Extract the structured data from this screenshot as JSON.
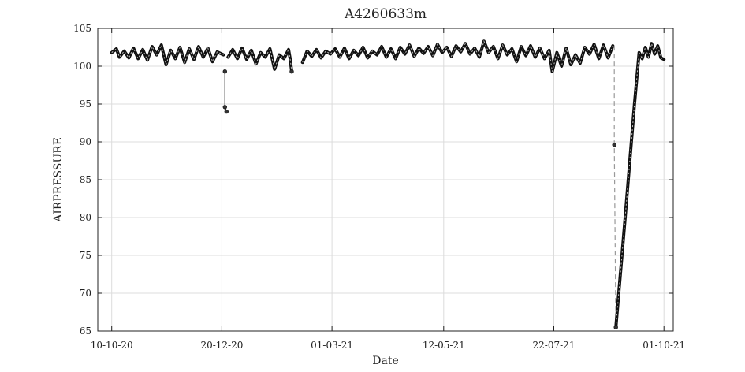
{
  "chart_data": {
    "type": "line",
    "title": "A4260633m",
    "xlabel": "Date",
    "ylabel": "AIRPRESSURE",
    "xlim": [
      "2020-10-01",
      "2021-10-07"
    ],
    "ylim": [
      65,
      105
    ],
    "grid": true,
    "x_ticks": [
      {
        "date": "2020-10-10",
        "label": "10-10-20"
      },
      {
        "date": "2020-12-20",
        "label": "20-12-20"
      },
      {
        "date": "2021-03-01",
        "label": "01-03-21"
      },
      {
        "date": "2021-05-12",
        "label": "12-05-21"
      },
      {
        "date": "2021-07-22",
        "label": "22-07-21"
      },
      {
        "date": "2021-10-01",
        "label": "01-10-21"
      }
    ],
    "y_ticks": [
      65,
      70,
      75,
      80,
      85,
      90,
      95,
      100,
      105
    ],
    "line_color": "#111111",
    "segments": [
      {
        "points": [
          [
            "2020-10-10",
            101.8
          ],
          [
            "2020-10-13",
            102.3
          ],
          [
            "2020-10-15",
            101.2
          ],
          [
            "2020-10-18",
            102.0
          ],
          [
            "2020-10-21",
            101.1
          ],
          [
            "2020-10-24",
            102.4
          ],
          [
            "2020-10-27",
            101.0
          ],
          [
            "2020-10-30",
            102.2
          ],
          [
            "2020-11-02",
            100.8
          ],
          [
            "2020-11-05",
            102.6
          ],
          [
            "2020-11-08",
            101.5
          ],
          [
            "2020-11-11",
            102.8
          ],
          [
            "2020-11-14",
            100.2
          ],
          [
            "2020-11-17",
            102.1
          ],
          [
            "2020-11-20",
            101.0
          ],
          [
            "2020-11-23",
            102.5
          ],
          [
            "2020-11-26",
            100.5
          ],
          [
            "2020-11-29",
            102.3
          ],
          [
            "2020-12-02",
            100.9
          ],
          [
            "2020-12-05",
            102.6
          ],
          [
            "2020-12-08",
            101.2
          ],
          [
            "2020-12-11",
            102.4
          ],
          [
            "2020-12-14",
            100.6
          ],
          [
            "2020-12-17",
            101.9
          ],
          [
            "2020-12-21",
            101.5
          ]
        ]
      },
      {
        "points": [
          [
            "2020-12-22",
            99.3
          ],
          [
            "2020-12-22",
            94.6
          ],
          [
            "2020-12-23",
            94.0
          ]
        ]
      },
      {
        "points": [
          [
            "2020-12-24",
            101.2
          ],
          [
            "2020-12-27",
            102.2
          ],
          [
            "2020-12-30",
            101.0
          ],
          [
            "2021-01-02",
            102.4
          ],
          [
            "2021-01-05",
            100.9
          ],
          [
            "2021-01-08",
            102.1
          ],
          [
            "2021-01-11",
            100.3
          ],
          [
            "2021-01-14",
            101.8
          ],
          [
            "2021-01-17",
            101.2
          ],
          [
            "2021-01-20",
            102.3
          ],
          [
            "2021-01-23",
            99.6
          ],
          [
            "2021-01-26",
            101.5
          ],
          [
            "2021-01-29",
            101.0
          ],
          [
            "2021-02-01",
            102.2
          ],
          [
            "2021-02-02",
            101.0
          ],
          [
            "2021-02-03",
            99.3
          ]
        ]
      },
      {
        "points": [
          [
            "2021-02-10",
            100.5
          ],
          [
            "2021-02-13",
            102.0
          ],
          [
            "2021-02-16",
            101.3
          ],
          [
            "2021-02-19",
            102.2
          ],
          [
            "2021-02-22",
            101.1
          ],
          [
            "2021-02-25",
            102.0
          ],
          [
            "2021-02-28",
            101.6
          ],
          [
            "2021-03-03",
            102.3
          ],
          [
            "2021-03-06",
            101.2
          ],
          [
            "2021-03-09",
            102.4
          ],
          [
            "2021-03-12",
            101.0
          ],
          [
            "2021-03-15",
            102.1
          ],
          [
            "2021-03-18",
            101.4
          ],
          [
            "2021-03-21",
            102.5
          ],
          [
            "2021-03-24",
            101.1
          ],
          [
            "2021-03-27",
            102.0
          ],
          [
            "2021-03-30",
            101.5
          ],
          [
            "2021-04-02",
            102.6
          ],
          [
            "2021-04-05",
            101.2
          ],
          [
            "2021-04-08",
            102.3
          ],
          [
            "2021-04-11",
            101.0
          ],
          [
            "2021-04-14",
            102.5
          ],
          [
            "2021-04-17",
            101.6
          ],
          [
            "2021-04-20",
            102.8
          ],
          [
            "2021-04-23",
            101.3
          ],
          [
            "2021-04-26",
            102.4
          ],
          [
            "2021-04-29",
            101.7
          ],
          [
            "2021-05-02",
            102.6
          ],
          [
            "2021-05-05",
            101.4
          ],
          [
            "2021-05-08",
            102.9
          ],
          [
            "2021-05-11",
            101.8
          ],
          [
            "2021-05-14",
            102.5
          ],
          [
            "2021-05-17",
            101.3
          ],
          [
            "2021-05-20",
            102.7
          ],
          [
            "2021-05-23",
            101.9
          ],
          [
            "2021-05-26",
            103.0
          ],
          [
            "2021-05-29",
            101.6
          ],
          [
            "2021-06-01",
            102.4
          ],
          [
            "2021-06-04",
            101.2
          ],
          [
            "2021-06-07",
            103.3
          ],
          [
            "2021-06-10",
            101.8
          ],
          [
            "2021-06-13",
            102.6
          ],
          [
            "2021-06-16",
            101.0
          ],
          [
            "2021-06-19",
            102.8
          ],
          [
            "2021-06-22",
            101.5
          ],
          [
            "2021-06-25",
            102.3
          ],
          [
            "2021-06-28",
            100.6
          ],
          [
            "2021-07-01",
            102.6
          ],
          [
            "2021-07-04",
            101.4
          ],
          [
            "2021-07-07",
            102.7
          ],
          [
            "2021-07-10",
            101.2
          ],
          [
            "2021-07-13",
            102.4
          ],
          [
            "2021-07-16",
            101.0
          ],
          [
            "2021-07-19",
            102.1
          ],
          [
            "2021-07-21",
            99.3
          ],
          [
            "2021-07-24",
            101.8
          ],
          [
            "2021-07-27",
            100.0
          ],
          [
            "2021-07-30",
            102.4
          ],
          [
            "2021-08-02",
            100.2
          ],
          [
            "2021-08-05",
            101.5
          ],
          [
            "2021-08-08",
            100.4
          ],
          [
            "2021-08-11",
            102.5
          ],
          [
            "2021-08-14",
            101.6
          ],
          [
            "2021-08-17",
            102.9
          ],
          [
            "2021-08-20",
            101.0
          ],
          [
            "2021-08-23",
            102.8
          ],
          [
            "2021-08-26",
            101.1
          ],
          [
            "2021-08-29",
            102.7
          ]
        ]
      },
      {
        "dashed": true,
        "points": [
          [
            "2021-08-30",
            102.7
          ],
          [
            "2021-08-30",
            89.6
          ],
          [
            "2021-08-31",
            65.5
          ]
        ]
      },
      {
        "points": [
          [
            "2021-08-31",
            65.5
          ],
          [
            "2021-09-06",
            80.0
          ],
          [
            "2021-09-12",
            95.0
          ],
          [
            "2021-09-15",
            101.8
          ],
          [
            "2021-09-17",
            101.0
          ],
          [
            "2021-09-19",
            102.5
          ],
          [
            "2021-09-21",
            101.2
          ],
          [
            "2021-09-23",
            103.0
          ],
          [
            "2021-09-25",
            101.6
          ],
          [
            "2021-09-27",
            102.7
          ],
          [
            "2021-09-29",
            101.1
          ],
          [
            "2021-10-01",
            100.9
          ]
        ]
      }
    ],
    "markers": [
      [
        "2020-12-22",
        99.3
      ],
      [
        "2020-12-22",
        94.6
      ],
      [
        "2020-12-23",
        94.0
      ],
      [
        "2021-02-03",
        99.3
      ],
      [
        "2021-08-30",
        89.6
      ],
      [
        "2021-08-31",
        65.5
      ]
    ]
  }
}
